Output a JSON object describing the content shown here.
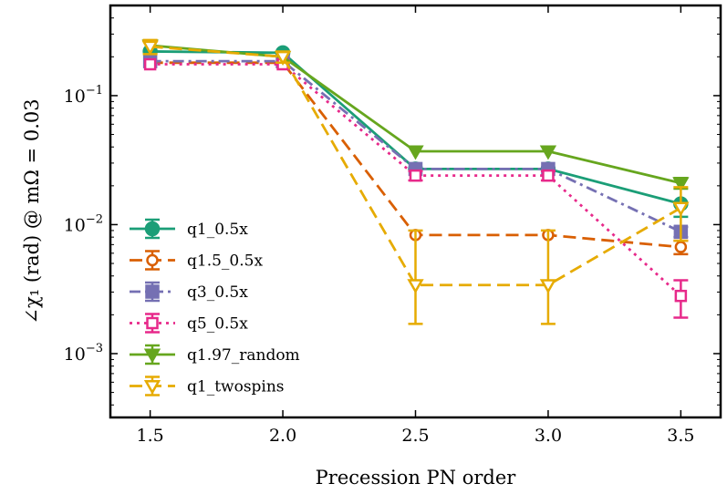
{
  "chart_data": {
    "type": "line",
    "title": "",
    "xlabel": "Precession PN order",
    "ylabel": "∠χ₁ (rad) @ mΩ = 0.03",
    "yscale": "log",
    "x": [
      1.5,
      2.0,
      2.5,
      3.0,
      3.5
    ],
    "xlim": [
      1.35,
      3.65
    ],
    "ylim": [
      0.00032,
      0.5
    ],
    "x_ticks": [
      1.5,
      2.0,
      2.5,
      3.0,
      3.5
    ],
    "x_tick_labels": [
      "1.5",
      "2.0",
      "2.5",
      "3.0",
      "3.5"
    ],
    "y_ticks": [
      0.001,
      0.01,
      0.1
    ],
    "y_tick_labels": [
      {
        "base": "10",
        "exp": "−3"
      },
      {
        "base": "10",
        "exp": "−2"
      },
      {
        "base": "10",
        "exp": "−1"
      }
    ],
    "legend_position": "lower-left",
    "series": [
      {
        "name": "q1_0.5x",
        "color": "#1b9e77",
        "dash": "solid",
        "marker": "circle",
        "values": [
          0.22,
          0.215,
          0.027,
          0.027,
          0.0145
        ],
        "err_lo": [
          0,
          0,
          0,
          0,
          0.003
        ],
        "err_hi": [
          0,
          0,
          0,
          0,
          0
        ]
      },
      {
        "name": "q1.5_0.5x",
        "color": "#d95f02",
        "dash": "dashed",
        "marker": "circle-open",
        "values": [
          0.18,
          0.18,
          0.0083,
          0.0083,
          0.0067
        ],
        "err_lo": [
          0,
          0,
          0,
          0,
          0.0008
        ],
        "err_hi": [
          0,
          0,
          0,
          0,
          0.0008
        ]
      },
      {
        "name": "q3_0.5x",
        "color": "#7570b3",
        "dash": "dashdot",
        "marker": "square",
        "values": [
          0.185,
          0.185,
          0.027,
          0.027,
          0.0088
        ],
        "err_lo": [
          0,
          0,
          0,
          0,
          0.0008
        ],
        "err_hi": [
          0,
          0,
          0,
          0,
          0.0008
        ]
      },
      {
        "name": "q5_0.5x",
        "color": "#e7298a",
        "dash": "dotted",
        "marker": "square-open",
        "values": [
          0.175,
          0.175,
          0.024,
          0.024,
          0.0028
        ],
        "err_lo": [
          0,
          0,
          0.002,
          0.002,
          0.0009
        ],
        "err_hi": [
          0,
          0,
          0.002,
          0.002,
          0.0009
        ]
      },
      {
        "name": "q1.97_random",
        "color": "#66a61e",
        "dash": "solid",
        "marker": "triangle-down",
        "values": [
          0.245,
          0.2,
          0.037,
          0.037,
          0.021
        ],
        "err_lo": [
          0,
          0,
          0,
          0,
          0.002
        ],
        "err_hi": [
          0,
          0,
          0,
          0,
          0.002
        ]
      },
      {
        "name": "q1_twospins",
        "color": "#e6ab02",
        "dash": "dashed",
        "marker": "triangle-down-open",
        "values": [
          0.24,
          0.2,
          0.0034,
          0.0034,
          0.0135
        ],
        "err_lo": [
          0.03,
          0.02,
          0.0017,
          0.0017,
          0.006
        ],
        "err_hi": [
          0.03,
          0.02,
          0.0056,
          0.0056,
          0.006
        ]
      }
    ]
  }
}
